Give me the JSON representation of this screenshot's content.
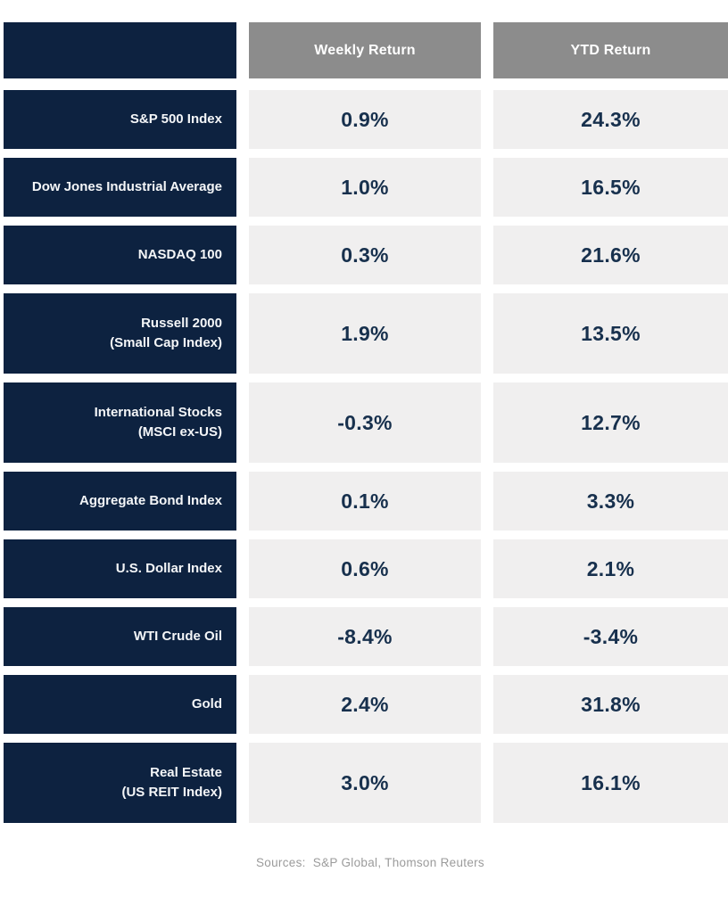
{
  "colors": {
    "navy": "#0d2240",
    "header_gray": "#8c8c8c",
    "cell_bg": "#f0efef",
    "value_text": "#17304d",
    "label_text": "#f4f6f8",
    "source_text": "#9b9b9b",
    "page_bg": "#ffffff"
  },
  "chart_data": {
    "type": "table",
    "columns": [
      "",
      "Weekly Return",
      "YTD Return"
    ],
    "rows": [
      {
        "label": "S&P 500 Index",
        "sublabel": "",
        "weekly": "0.9%",
        "ytd": "24.3%"
      },
      {
        "label": "Dow Jones Industrial Average",
        "sublabel": "",
        "weekly": "1.0%",
        "ytd": "16.5%"
      },
      {
        "label": "NASDAQ 100",
        "sublabel": "",
        "weekly": "0.3%",
        "ytd": "21.6%"
      },
      {
        "label": "Russell 2000",
        "sublabel": "(Small Cap Index)",
        "weekly": "1.9%",
        "ytd": "13.5%"
      },
      {
        "label": "International Stocks",
        "sublabel": "(MSCI ex-US)",
        "weekly": "-0.3%",
        "ytd": "12.7%"
      },
      {
        "label": "Aggregate Bond Index",
        "sublabel": "",
        "weekly": "0.1%",
        "ytd": "3.3%"
      },
      {
        "label": "U.S. Dollar Index",
        "sublabel": "",
        "weekly": "0.6%",
        "ytd": "2.1%"
      },
      {
        "label": "WTI Crude Oil",
        "sublabel": "",
        "weekly": "-8.4%",
        "ytd": "-3.4%"
      },
      {
        "label": "Gold",
        "sublabel": "",
        "weekly": "2.4%",
        "ytd": "31.8%"
      },
      {
        "label": "Real Estate",
        "sublabel": "(US REIT Index)",
        "weekly": "3.0%",
        "ytd": "16.1%"
      }
    ],
    "source_note": "Sources:  S&P Global, Thomson Reuters"
  }
}
